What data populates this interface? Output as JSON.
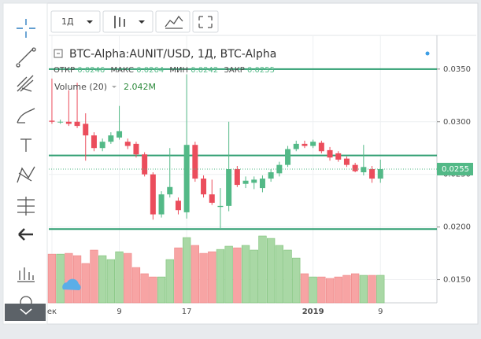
{
  "ui": {
    "interval": "1Д"
  },
  "chart_data": {
    "type": "candlestick",
    "title": "BTC-Alpha:AUNIT/USD, 1Д, BTC-Alpha",
    "ohlc_names": [
      "ОТКР",
      "МАКС",
      "МИН",
      "ЗАКР"
    ],
    "categories": [
      "ек",
      null,
      null,
      null,
      null,
      null,
      null,
      null,
      "9",
      null,
      null,
      null,
      null,
      null,
      null,
      null,
      "17",
      null,
      null,
      null,
      null,
      null,
      null,
      null,
      null,
      null,
      null,
      null,
      null,
      null,
      null,
      "2019",
      null,
      null,
      null,
      null,
      null,
      null,
      null,
      "9"
    ],
    "candles": [
      [
        0.0301,
        0.0341,
        0.0298,
        0.03
      ],
      [
        0.03,
        0.0302,
        0.0298,
        0.03
      ],
      [
        0.03,
        0.033,
        0.0296,
        0.0298
      ],
      [
        0.03,
        0.0337,
        0.0294,
        0.0296
      ],
      [
        0.0298,
        0.0308,
        0.0263,
        0.0287
      ],
      [
        0.0287,
        0.029,
        0.0272,
        0.0275
      ],
      [
        0.0275,
        0.0284,
        0.0272,
        0.0281
      ],
      [
        0.0281,
        0.029,
        0.0279,
        0.0287
      ],
      [
        0.0285,
        0.0315,
        0.0283,
        0.0291
      ],
      [
        0.0281,
        0.0284,
        0.0274,
        0.0277
      ],
      [
        0.0279,
        0.0281,
        0.0266,
        0.0269
      ],
      [
        0.0269,
        0.0271,
        0.0248,
        0.025
      ],
      [
        0.025,
        0.0252,
        0.0207,
        0.0212
      ],
      [
        0.0212,
        0.0234,
        0.0209,
        0.0231
      ],
      [
        0.0231,
        0.0275,
        0.0228,
        0.0238
      ],
      [
        0.0225,
        0.0228,
        0.0212,
        0.0216
      ],
      [
        0.0214,
        0.0345,
        0.0208,
        0.0278
      ],
      [
        0.0278,
        0.0281,
        0.0243,
        0.0246
      ],
      [
        0.0246,
        0.0249,
        0.0228,
        0.0231
      ],
      [
        0.0231,
        0.0245,
        0.0221,
        0.0223
      ],
      [
        0.0219,
        0.0237,
        0.0199,
        0.022
      ],
      [
        0.022,
        0.03,
        0.0215,
        0.0255
      ],
      [
        0.0255,
        0.0258,
        0.0238,
        0.024
      ],
      [
        0.0241,
        0.0248,
        0.0237,
        0.0244
      ],
      [
        0.0242,
        0.0248,
        0.0236,
        0.0245
      ],
      [
        0.0237,
        0.0249,
        0.0233,
        0.0246
      ],
      [
        0.0246,
        0.0255,
        0.0243,
        0.0252
      ],
      [
        0.0251,
        0.0262,
        0.0248,
        0.0259
      ],
      [
        0.0259,
        0.0277,
        0.0257,
        0.0274
      ],
      [
        0.0274,
        0.0282,
        0.0272,
        0.0279
      ],
      [
        0.0279,
        0.0282,
        0.0275,
        0.0277
      ],
      [
        0.0277,
        0.0283,
        0.0275,
        0.0281
      ],
      [
        0.028,
        0.0282,
        0.027,
        0.0272
      ],
      [
        0.0273,
        0.0276,
        0.0263,
        0.0266
      ],
      [
        0.027,
        0.0272,
        0.0262,
        0.0264
      ],
      [
        0.0265,
        0.0267,
        0.0257,
        0.0259
      ],
      [
        0.0259,
        0.0261,
        0.0252,
        0.0253
      ],
      [
        0.0252,
        0.0278,
        0.0249,
        0.0257
      ],
      [
        0.0255,
        0.0258,
        0.0242,
        0.0246
      ],
      [
        0.0246,
        0.0264,
        0.0242,
        0.0255
      ]
    ],
    "up_color": "#53b987",
    "down_color": "#eb4d5c",
    "volume": {
      "name": "Volume (20)",
      "last_label": "2.042M",
      "up_color": "#a9d8a5",
      "down_color": "#f7a4a4",
      "values": [
        3.61,
        3.61,
        3.67,
        3.5,
        2.92,
        3.91,
        3.5,
        3.21,
        3.79,
        3.67,
        2.62,
        2.16,
        1.92,
        1.92,
        3.21,
        4.08,
        4.84,
        4.26,
        3.67,
        3.79,
        3.96,
        4.2,
        4.08,
        4.26,
        3.91,
        4.96,
        4.78,
        4.26,
        3.91,
        3.32,
        2.16,
        1.92,
        1.92,
        1.81,
        1.92,
        2.04,
        2.16,
        2.04,
        2.04,
        2.042
      ]
    },
    "hlines": [
      0.035,
      0.0268,
      0.0198
    ],
    "hline_color": "#2e9e70",
    "ylim": [
      0.0128,
      0.0382
    ],
    "yticks": [
      {
        "value": 0.015,
        "label": "0.0150"
      },
      {
        "value": 0.02,
        "label": "0.0200"
      },
      {
        "value": 0.025,
        "label": "0.0250"
      },
      {
        "value": 0.03,
        "label": "0.0300"
      },
      {
        "value": 0.035,
        "label": "0.0350"
      }
    ],
    "grid": true
  }
}
